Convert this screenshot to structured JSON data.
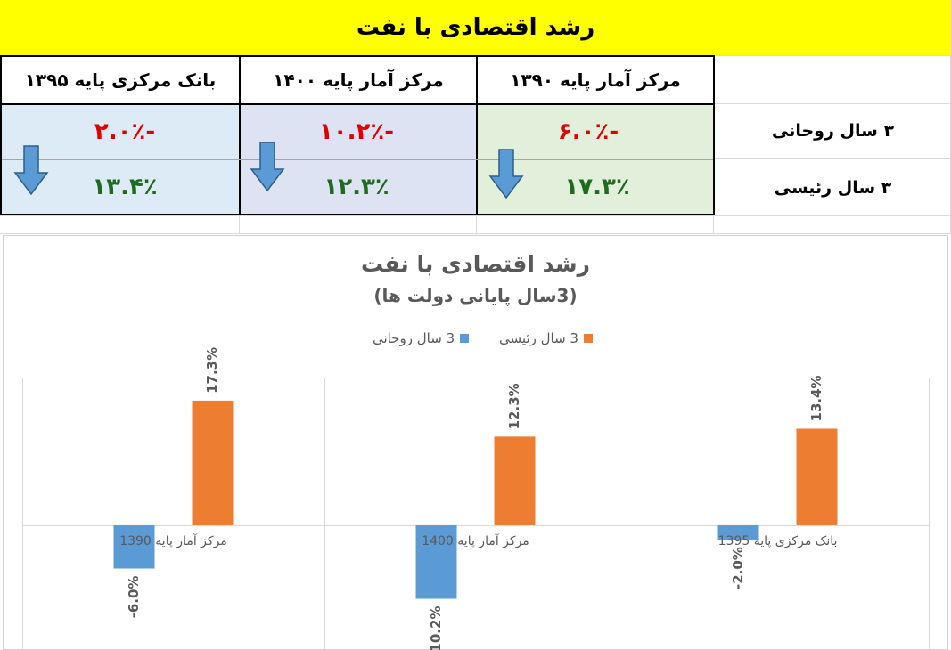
{
  "banner": {
    "title": "رشد اقتصادی با نفت"
  },
  "table": {
    "headers": [
      "مرکز آمار پایه ۱۳۹۰",
      "مرکز آمار پایه ۱۴۰۰",
      "بانک مرکزی پایه ۱۳۹۵"
    ],
    "row_labels": [
      "۳ سال روحانی",
      "۳ سال رئیسی"
    ],
    "rouhani_values": [
      "-۶.۰٪",
      "-۱۰.۲٪",
      "-۲.۰٪"
    ],
    "raisi_values": [
      "۱۷.۳٪",
      "۱۲.۳٪",
      "۱۳.۴٪"
    ],
    "colors": {
      "panel1": "#e2efda",
      "panel2": "#dde3f2",
      "panel3": "#ddebf7",
      "arrow": "#5b9bd5"
    }
  },
  "chart_data": {
    "type": "bar",
    "title": "رشد اقتصادی با نفت",
    "subtitle": "(3سال پایانی دولت ها)",
    "categories": [
      "مرکز آمار پایه 1390",
      "مرکز آمار پایه 1400",
      "بانک مرکزی پایه 1395"
    ],
    "series": [
      {
        "name": "3 سال روحانی",
        "values": [
          -6.0,
          -10.2,
          -2.0
        ],
        "labels": [
          "-6.0%",
          "-10.2%",
          "-2.0%"
        ],
        "color": "#5b9bd5"
      },
      {
        "name": "3 سال رئیسی",
        "values": [
          17.3,
          12.3,
          13.4
        ],
        "labels": [
          "17.3%",
          "12.3%",
          "13.4%"
        ],
        "color": "#ed7d31"
      }
    ],
    "ylim": [
      -17.3,
      20.5
    ],
    "legend": "top",
    "grid": false
  }
}
